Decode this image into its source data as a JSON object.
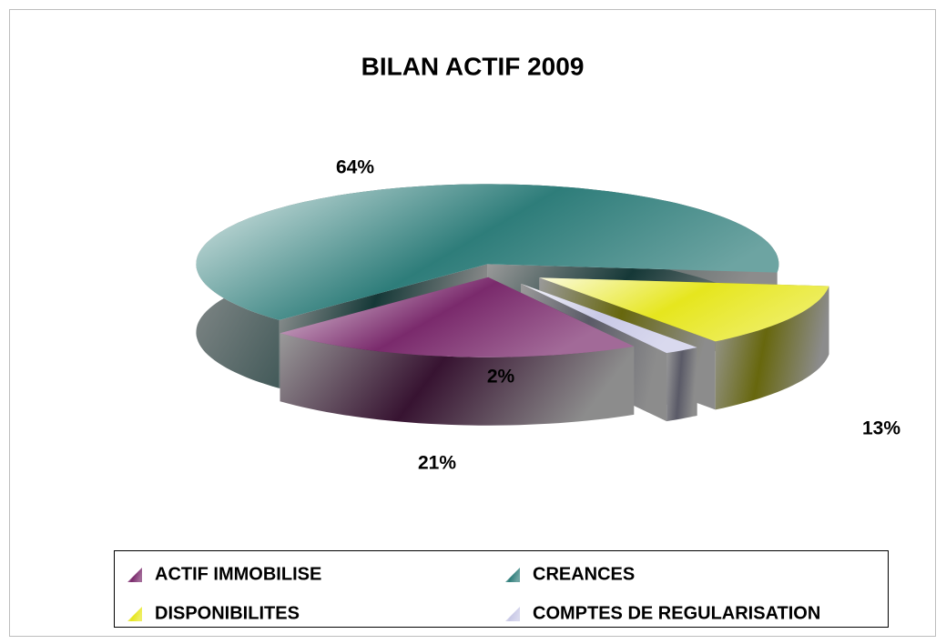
{
  "chart_data": {
    "type": "pie",
    "title": "BILAN ACTIF 2009",
    "categories": [
      "ACTIF IMMOBILISE",
      "CREANCES",
      "DISPONIBILITES",
      "COMPTES DE REGULARISATION"
    ],
    "values": [
      21,
      64,
      13,
      2
    ],
    "value_labels": [
      "21%",
      "64%",
      "13%",
      "2%"
    ],
    "colors": [
      "#7a2a6c",
      "#2e7d7a",
      "#e6e61e",
      "#c9c9e6"
    ],
    "legend": "bottom"
  }
}
